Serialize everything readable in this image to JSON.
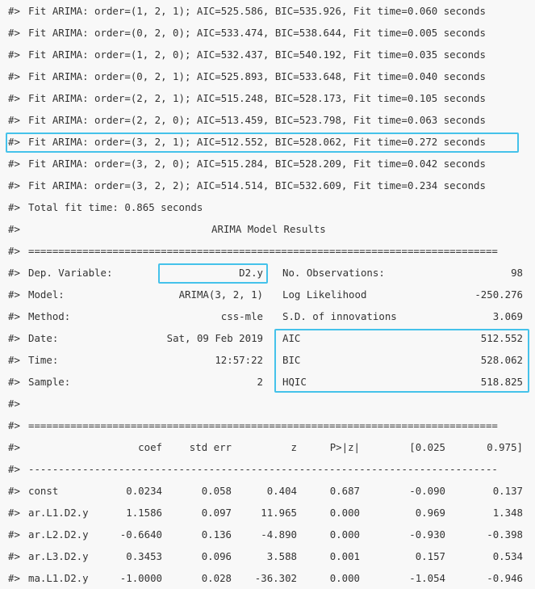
{
  "prefix": "#>",
  "fit_lines": [
    "Fit ARIMA: order=(1, 2, 1); AIC=525.586, BIC=535.926, Fit time=0.060 seconds",
    "Fit ARIMA: order=(0, 2, 0); AIC=533.474, BIC=538.644, Fit time=0.005 seconds",
    "Fit ARIMA: order=(1, 2, 0); AIC=532.437, BIC=540.192, Fit time=0.035 seconds",
    "Fit ARIMA: order=(0, 2, 1); AIC=525.893, BIC=533.648, Fit time=0.040 seconds",
    "Fit ARIMA: order=(2, 2, 1); AIC=515.248, BIC=528.173, Fit time=0.105 seconds",
    "Fit ARIMA: order=(2, 2, 0); AIC=513.459, BIC=523.798, Fit time=0.063 seconds",
    "Fit ARIMA: order=(3, 2, 1); AIC=512.552, BIC=528.062, Fit time=0.272 seconds",
    "Fit ARIMA: order=(3, 2, 0); AIC=515.284, BIC=528.209, Fit time=0.042 seconds",
    "Fit ARIMA: order=(3, 2, 2); AIC=514.514, BIC=532.609, Fit time=0.234 seconds"
  ],
  "total_fit_time": "Total fit time: 0.865 seconds",
  "results_title": "ARIMA Model Results",
  "double_rule": "==============================================================================",
  "single_rule": "------------------------------------------------------------------------------",
  "summary_rows": [
    {
      "label": "Dep. Variable:",
      "value": "D2.y",
      "label2": "No. Observations:",
      "value2": "98"
    },
    {
      "label": "Model:",
      "value": "ARIMA(3, 2, 1)",
      "label2": "Log Likelihood",
      "value2": "-250.276"
    },
    {
      "label": "Method:",
      "value": "css-mle",
      "label2": "S.D. of innovations",
      "value2": "3.069"
    },
    {
      "label": "Date:",
      "value": "Sat, 09 Feb 2019",
      "label2": "AIC",
      "value2": "512.552"
    },
    {
      "label": "Time:",
      "value": "12:57:22",
      "label2": "BIC",
      "value2": "528.062"
    },
    {
      "label": "Sample:",
      "value": "2",
      "label2": "HQIC",
      "value2": "518.825"
    }
  ],
  "coef_headers": [
    "coef",
    "std err",
    "z",
    "P>|z|",
    "[0.025",
    "0.975]"
  ],
  "coef_rows": [
    {
      "name": "const",
      "values": [
        "0.0234",
        "0.058",
        "0.404",
        "0.687",
        "-0.090",
        "0.137"
      ]
    },
    {
      "name": "ar.L1.D2.y",
      "values": [
        "1.1586",
        "0.097",
        "11.965",
        "0.000",
        "0.969",
        "1.348"
      ]
    },
    {
      "name": "ar.L2.D2.y",
      "values": [
        "-0.6640",
        "0.136",
        "-4.890",
        "0.000",
        "-0.930",
        "-0.398"
      ]
    },
    {
      "name": "ar.L3.D2.y",
      "values": [
        "0.3453",
        "0.096",
        "3.588",
        "0.001",
        "0.157",
        "0.534"
      ]
    },
    {
      "name": "ma.L1.D2.y",
      "values": [
        "-1.0000",
        "0.028",
        "-36.302",
        "0.000",
        "-1.054",
        "-0.946"
      ]
    }
  ],
  "highlight_color": "#45c2ea"
}
